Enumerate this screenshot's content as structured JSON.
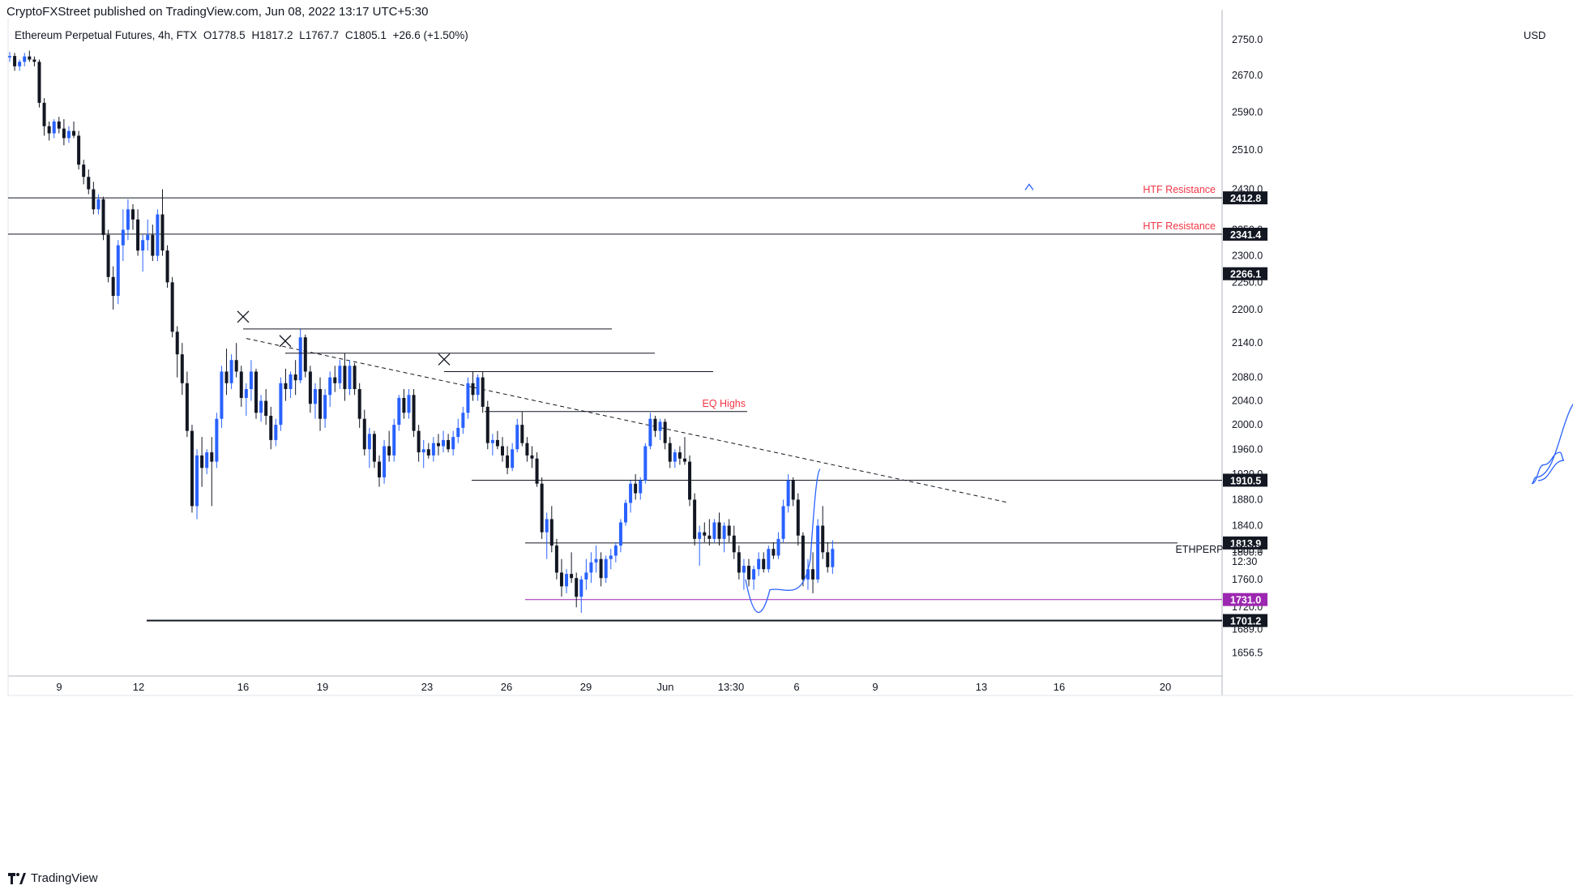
{
  "header": {
    "published": "CryptoFXStreet published on TradingView.com, Jun 08, 2022 13:17 UTC+5:30"
  },
  "legend": {
    "symbol": "Ethereum Perpetual Futures, 4h, FTX",
    "open": "O1778.5",
    "high": "H1817.2",
    "low": "L1767.7",
    "close": "C1805.1",
    "change": "+26.6 (+1.50%)"
  },
  "currency": "USD",
  "footer": {
    "brand": "TradingView"
  },
  "colors": {
    "bull": "#2962ff",
    "bear": "#131722",
    "resistance_text": "#f23645",
    "support_line": "#9c27b0",
    "projection": "#2962ff"
  },
  "chart_data": {
    "type": "candlestick",
    "timeframe": "4h",
    "y_scale": "log",
    "ylim": [
      1625,
      2800
    ],
    "y_ticks": [
      1656.5,
      1689.0,
      1720.0,
      1760.0,
      1800.0,
      1840.0,
      1880.0,
      1920.0,
      1960.0,
      2000.0,
      2040.0,
      2080.0,
      2140.0,
      2200.0,
      2250.0,
      2300.0,
      2350.0,
      2430.0,
      2510.0,
      2590.0,
      2670.0,
      2750.0
    ],
    "x_ticks": [
      "9",
      "12",
      "16",
      "19",
      "23",
      "26",
      "29",
      "Jun",
      "13:30",
      "6",
      "9",
      "13",
      "16",
      "20"
    ],
    "price_labels": [
      {
        "value": "2412.8",
        "style": "dark"
      },
      {
        "value": "2341.4",
        "style": "dark"
      },
      {
        "value": "2266.1",
        "style": "dark"
      },
      {
        "value": "1910.5",
        "style": "dark"
      },
      {
        "value": "1813.9",
        "style": "dark"
      },
      {
        "value": "1731.0",
        "style": "purple"
      },
      {
        "value": "1701.2",
        "style": "dark"
      }
    ],
    "last_price": {
      "symbol": "ETHPERP",
      "value": "1805.1",
      "countdown": "12:30"
    },
    "annotations": [
      {
        "text": "HTF Resistance",
        "price": 2412.8
      },
      {
        "text": "HTF Resistance",
        "price": 2341.4
      },
      {
        "text": "EQ Highs",
        "price": 2022
      }
    ],
    "levels": [
      {
        "price": 2412.8,
        "from": "start",
        "to": "end"
      },
      {
        "price": 2341.4,
        "from": "start",
        "to": "end"
      },
      {
        "price": 1910.5,
        "from": "May 25",
        "to": "end"
      },
      {
        "price": 1813.9,
        "from": "May 27",
        "to": "Jun 10"
      },
      {
        "price": 1731.0,
        "from": "May 27",
        "to": "end"
      },
      {
        "price": 1701.2,
        "from": "May 12",
        "to": "end"
      }
    ],
    "swing_highs": [
      {
        "price": 2165,
        "date": "May 16"
      },
      {
        "price": 2122,
        "date": "May 17"
      },
      {
        "price": 2090,
        "date": "May 23"
      },
      {
        "price": 2022,
        "date": "May 25"
      }
    ],
    "projection_path": [
      [
        1910,
        1898
      ],
      [
        1942,
        1930
      ],
      [
        1955,
        1925
      ],
      [
        1935,
        1905
      ],
      [
        1905,
        1890
      ],
      [
        1915,
        1895
      ],
      [
        2050,
        1957
      ],
      [
        2245,
        2075
      ],
      [
        2185,
        2123
      ],
      [
        2195,
        2145
      ],
      [
        2130,
        2165
      ],
      [
        2140,
        2185
      ],
      [
        2250,
        2245
      ],
      [
        2440,
        2258
      ]
    ],
    "candles": [
      [
        2710,
        2722,
        2700,
        2713
      ],
      [
        2713,
        2720,
        2680,
        2690
      ],
      [
        2690,
        2705,
        2680,
        2700
      ],
      [
        2700,
        2720,
        2690,
        2712
      ],
      [
        2712,
        2725,
        2700,
        2705
      ],
      [
        2705,
        2712,
        2690,
        2700
      ],
      [
        2700,
        2705,
        2600,
        2610
      ],
      [
        2610,
        2620,
        2540,
        2560
      ],
      [
        2560,
        2570,
        2530,
        2545
      ],
      [
        2545,
        2575,
        2535,
        2570
      ],
      [
        2570,
        2580,
        2545,
        2555
      ],
      [
        2555,
        2575,
        2520,
        2535
      ],
      [
        2535,
        2560,
        2525,
        2550
      ],
      [
        2550,
        2570,
        2535,
        2540
      ],
      [
        2540,
        2550,
        2470,
        2480
      ],
      [
        2480,
        2490,
        2440,
        2455
      ],
      [
        2455,
        2470,
        2420,
        2430
      ],
      [
        2430,
        2445,
        2380,
        2390
      ],
      [
        2390,
        2420,
        2380,
        2410
      ],
      [
        2410,
        2415,
        2330,
        2340
      ],
      [
        2340,
        2350,
        2250,
        2260
      ],
      [
        2260,
        2280,
        2200,
        2225
      ],
      [
        2225,
        2330,
        2210,
        2320
      ],
      [
        2320,
        2390,
        2290,
        2350
      ],
      [
        2350,
        2410,
        2330,
        2390
      ],
      [
        2390,
        2400,
        2350,
        2370
      ],
      [
        2370,
        2390,
        2300,
        2310
      ],
      [
        2310,
        2340,
        2270,
        2330
      ],
      [
        2330,
        2370,
        2310,
        2340
      ],
      [
        2340,
        2360,
        2290,
        2300
      ],
      [
        2300,
        2390,
        2290,
        2380
      ],
      [
        2380,
        2430,
        2300,
        2310
      ],
      [
        2310,
        2320,
        2240,
        2250
      ],
      [
        2250,
        2260,
        2150,
        2160
      ],
      [
        2160,
        2170,
        2080,
        2120
      ],
      [
        2120,
        2140,
        2050,
        2070
      ],
      [
        2070,
        2090,
        1980,
        1990
      ],
      [
        1990,
        2000,
        1860,
        1870
      ],
      [
        1870,
        1960,
        1850,
        1950
      ],
      [
        1950,
        1980,
        1900,
        1930
      ],
      [
        1930,
        1960,
        1920,
        1955
      ],
      [
        1955,
        1980,
        1870,
        1940
      ],
      [
        1940,
        2020,
        1930,
        2010
      ],
      [
        2010,
        2100,
        1995,
        2090
      ],
      [
        2090,
        2130,
        2050,
        2070
      ],
      [
        2070,
        2120,
        2060,
        2110
      ],
      [
        2110,
        2140,
        2080,
        2090
      ],
      [
        2090,
        2100,
        2030,
        2045
      ],
      [
        2045,
        2070,
        2015,
        2060
      ],
      [
        2060,
        2110,
        2040,
        2090
      ],
      [
        2090,
        2095,
        2010,
        2020
      ],
      [
        2020,
        2050,
        2005,
        2040
      ],
      [
        2040,
        2060,
        2000,
        2015
      ],
      [
        2015,
        2030,
        1960,
        1975
      ],
      [
        1975,
        2010,
        1965,
        2000
      ],
      [
        2000,
        2080,
        1990,
        2070
      ],
      [
        2070,
        2095,
        2040,
        2060
      ],
      [
        2060,
        2090,
        2045,
        2085
      ],
      [
        2085,
        2110,
        2050,
        2075
      ],
      [
        2075,
        2165,
        2070,
        2150
      ],
      [
        2150,
        2155,
        2080,
        2090
      ],
      [
        2090,
        2100,
        2020,
        2035
      ],
      [
        2035,
        2070,
        2010,
        2060
      ],
      [
        2060,
        2080,
        1990,
        2010
      ],
      [
        2010,
        2060,
        1995,
        2050
      ],
      [
        2050,
        2090,
        2030,
        2080
      ],
      [
        2080,
        2100,
        2055,
        2070
      ],
      [
        2070,
        2110,
        2060,
        2100
      ],
      [
        2100,
        2122,
        2040,
        2060
      ],
      [
        2060,
        2110,
        2050,
        2100
      ],
      [
        2100,
        2105,
        2050,
        2060
      ],
      [
        2060,
        2070,
        1995,
        2010
      ],
      [
        2010,
        2025,
        1950,
        1960
      ],
      [
        1960,
        1995,
        1930,
        1985
      ],
      [
        1985,
        1990,
        1930,
        1940
      ],
      [
        1940,
        1950,
        1900,
        1915
      ],
      [
        1915,
        1975,
        1905,
        1965
      ],
      [
        1965,
        1990,
        1940,
        1950
      ],
      [
        1950,
        2010,
        1940,
        2000
      ],
      [
        2000,
        2050,
        1990,
        2045
      ],
      [
        2045,
        2060,
        2010,
        2020
      ],
      [
        2020,
        2060,
        2010,
        2050
      ],
      [
        2050,
        2060,
        1980,
        1990
      ],
      [
        1990,
        2000,
        1940,
        1955
      ],
      [
        1955,
        1975,
        1930,
        1960
      ],
      [
        1960,
        1970,
        1945,
        1950
      ],
      [
        1950,
        1980,
        1940,
        1970
      ],
      [
        1970,
        1985,
        1950,
        1965
      ],
      [
        1965,
        1990,
        1955,
        1975
      ],
      [
        1975,
        1985,
        1955,
        1960
      ],
      [
        1960,
        1990,
        1950,
        1980
      ],
      [
        1980,
        2010,
        1970,
        1995
      ],
      [
        1995,
        2030,
        1985,
        2020
      ],
      [
        2020,
        2080,
        2010,
        2070
      ],
      [
        2070,
        2090,
        2040,
        2050
      ],
      [
        2050,
        2085,
        2040,
        2080
      ],
      [
        2080,
        2090,
        2020,
        2030
      ],
      [
        2030,
        2040,
        1960,
        1970
      ],
      [
        1970,
        1985,
        1950,
        1975
      ],
      [
        1975,
        1990,
        1960,
        1965
      ],
      [
        1965,
        1980,
        1940,
        1950
      ],
      [
        1950,
        1965,
        1920,
        1930
      ],
      [
        1930,
        1970,
        1925,
        1960
      ],
      [
        1960,
        2010,
        1955,
        2000
      ],
      [
        2000,
        2022,
        1965,
        1970
      ],
      [
        1970,
        1980,
        1940,
        1950
      ],
      [
        1950,
        1965,
        1930,
        1945
      ],
      [
        1945,
        1955,
        1900,
        1905
      ],
      [
        1905,
        1915,
        1820,
        1830
      ],
      [
        1830,
        1860,
        1790,
        1850
      ],
      [
        1850,
        1870,
        1800,
        1810
      ],
      [
        1810,
        1820,
        1760,
        1770
      ],
      [
        1770,
        1790,
        1735,
        1750
      ],
      [
        1750,
        1775,
        1740,
        1768
      ],
      [
        1768,
        1800,
        1755,
        1762
      ],
      [
        1762,
        1770,
        1720,
        1735
      ],
      [
        1735,
        1765,
        1712,
        1760
      ],
      [
        1760,
        1790,
        1745,
        1770
      ],
      [
        1770,
        1800,
        1755,
        1785
      ],
      [
        1785,
        1810,
        1770,
        1790
      ],
      [
        1790,
        1800,
        1750,
        1762
      ],
      [
        1762,
        1795,
        1755,
        1790
      ],
      [
        1790,
        1805,
        1775,
        1795
      ],
      [
        1795,
        1815,
        1785,
        1810
      ],
      [
        1810,
        1850,
        1800,
        1845
      ],
      [
        1845,
        1880,
        1840,
        1875
      ],
      [
        1875,
        1910,
        1860,
        1905
      ],
      [
        1905,
        1920,
        1880,
        1890
      ],
      [
        1890,
        1915,
        1880,
        1910
      ],
      [
        1910,
        1970,
        1905,
        1965
      ],
      [
        1965,
        2020,
        1960,
        2010
      ],
      [
        2010,
        2015,
        1980,
        1990
      ],
      [
        1990,
        2010,
        1975,
        2005
      ],
      [
        2005,
        2010,
        1960,
        1970
      ],
      [
        1970,
        1980,
        1930,
        1940
      ],
      [
        1940,
        1960,
        1930,
        1955
      ],
      [
        1955,
        1965,
        1935,
        1945
      ],
      [
        1945,
        1980,
        1935,
        1940
      ],
      [
        1940,
        1950,
        1870,
        1880
      ],
      [
        1880,
        1890,
        1810,
        1820
      ],
      [
        1820,
        1840,
        1780,
        1830
      ],
      [
        1830,
        1845,
        1815,
        1825
      ],
      [
        1825,
        1850,
        1810,
        1820
      ],
      [
        1820,
        1850,
        1815,
        1845
      ],
      [
        1845,
        1860,
        1810,
        1820
      ],
      [
        1820,
        1845,
        1800,
        1840
      ],
      [
        1840,
        1850,
        1815,
        1825
      ],
      [
        1825,
        1840,
        1790,
        1800
      ],
      [
        1800,
        1810,
        1760,
        1770
      ],
      [
        1770,
        1790,
        1745,
        1780
      ],
      [
        1780,
        1790,
        1750,
        1760
      ],
      [
        1760,
        1780,
        1745,
        1775
      ],
      [
        1775,
        1800,
        1765,
        1790
      ],
      [
        1790,
        1800,
        1770,
        1775
      ],
      [
        1775,
        1810,
        1770,
        1805
      ],
      [
        1805,
        1815,
        1790,
        1795
      ],
      [
        1795,
        1830,
        1790,
        1820
      ],
      [
        1820,
        1880,
        1815,
        1870
      ],
      [
        1870,
        1920,
        1860,
        1910
      ],
      [
        1910,
        1915,
        1870,
        1880
      ],
      [
        1880,
        1890,
        1810,
        1825
      ],
      [
        1825,
        1830,
        1750,
        1760
      ],
      [
        1760,
        1790,
        1745,
        1775
      ],
      [
        1775,
        1800,
        1740,
        1760
      ],
      [
        1760,
        1850,
        1755,
        1840
      ],
      [
        1840,
        1870,
        1790,
        1800
      ],
      [
        1800,
        1815,
        1770,
        1778
      ],
      [
        1778,
        1818,
        1768,
        1805
      ]
    ]
  }
}
